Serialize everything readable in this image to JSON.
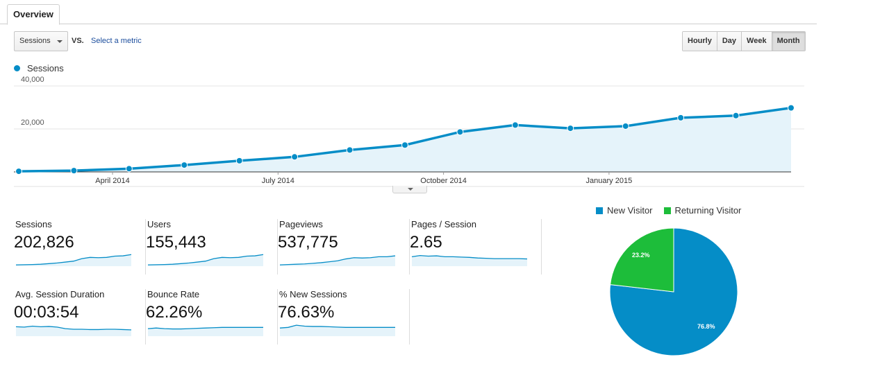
{
  "tabs": {
    "overview": "Overview"
  },
  "controls": {
    "metric_select": "Sessions",
    "vs_label": "VS.",
    "select_metric_link": "Select a metric",
    "ranges": [
      "Hourly",
      "Day",
      "Week",
      "Month"
    ],
    "active_range": "Month"
  },
  "chart": {
    "legend_label": "Sessions",
    "y_ticks": [
      "40,000",
      "20,000"
    ],
    "x_ticks": [
      "April 2014",
      "July 2014",
      "October 2014",
      "January 2015"
    ],
    "colors": {
      "line": "#058dc7",
      "fill": "#e5f3fa",
      "grid": "#e6e6e6"
    }
  },
  "chart_data": {
    "type": "area",
    "x": [
      "2014-02",
      "2014-03",
      "2014-04",
      "2014-05",
      "2014-06",
      "2014-07",
      "2014-08",
      "2014-09",
      "2014-10",
      "2014-11",
      "2014-12",
      "2015-01",
      "2015-02",
      "2015-03",
      "2015-04"
    ],
    "series": [
      {
        "name": "Sessions",
        "values": [
          300,
          600,
          1500,
          3200,
          5200,
          7000,
          10200,
          12500,
          18600,
          21800,
          20300,
          21300,
          25200,
          26200,
          29800
        ]
      }
    ],
    "ylim": [
      0,
      40000
    ],
    "y_ticks": [
      20000,
      40000
    ],
    "x_tick_labels": [
      "April 2014",
      "July 2014",
      "October 2014",
      "January 2015"
    ],
    "grid": true
  },
  "metrics": [
    {
      "label": "Sessions",
      "value": "202,826",
      "spark": [
        2,
        2.5,
        3,
        4,
        6,
        8,
        11,
        14,
        22,
        26,
        25,
        26,
        30,
        31,
        35
      ]
    },
    {
      "label": "Users",
      "value": "155,443",
      "spark": [
        2,
        2.5,
        3,
        4,
        6,
        8,
        11,
        14,
        22,
        26,
        25,
        26,
        30,
        31,
        35
      ]
    },
    {
      "label": "Pageviews",
      "value": "537,775",
      "spark": [
        2,
        3,
        4,
        5,
        7,
        9,
        12,
        15,
        21,
        25,
        24,
        25,
        28,
        28,
        31
      ]
    },
    {
      "label": "Pages / Session",
      "value": "2.65",
      "spark": [
        28,
        32,
        30,
        31,
        28,
        28,
        27,
        26,
        24,
        23,
        22,
        22,
        22,
        22,
        21
      ]
    },
    {
      "label": "Avg. Session Duration",
      "value": "00:03:54",
      "spark": [
        28,
        27,
        30,
        28,
        29,
        27,
        22,
        20,
        20,
        19,
        19,
        20,
        20,
        19,
        18
      ]
    },
    {
      "label": "Bounce Rate",
      "value": "62.26%",
      "spark": [
        22,
        24,
        22,
        21,
        21,
        22,
        23,
        24,
        25,
        26,
        26,
        26,
        26,
        26,
        26
      ]
    },
    {
      "label": "% New Sessions",
      "value": "76.63%",
      "spark": [
        24,
        26,
        33,
        30,
        29,
        29,
        28,
        27,
        26,
        26,
        26,
        26,
        26,
        26,
        26
      ]
    }
  ],
  "pie": {
    "legend": [
      {
        "label": "New Visitor",
        "color": "#058dc7"
      },
      {
        "label": "Returning Visitor",
        "color": "#1dbd3a"
      }
    ],
    "slices": [
      {
        "label": "76.8%",
        "value": 76.8,
        "color": "#058dc7"
      },
      {
        "label": "23.2%",
        "value": 23.2,
        "color": "#1dbd3a"
      }
    ]
  }
}
